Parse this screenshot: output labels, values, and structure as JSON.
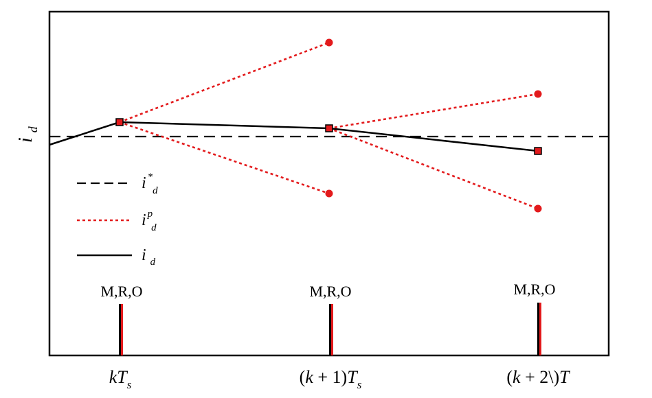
{
  "y_axis_label": {
    "main": "i",
    "sub": "d"
  },
  "legend": [
    {
      "style": "dashed",
      "main": "i",
      "sup": "*",
      "sub": "d",
      "color": "#000000"
    },
    {
      "style": "dotted",
      "main": "i",
      "sup": "p",
      "sub": "d",
      "color": "#e31a1c"
    },
    {
      "style": "solid",
      "main": "i",
      "sup": "",
      "sub": "d",
      "color": "#000000"
    }
  ],
  "markers": [
    {
      "label": "M,R,O"
    },
    {
      "label": "M,R,O"
    },
    {
      "label": "M,R,O"
    }
  ],
  "x_ticks": [
    {
      "parts": [
        {
          "t": "kT",
          "i": true
        },
        {
          "t": "s",
          "i": true,
          "sub": true
        }
      ]
    },
    {
      "parts": [
        {
          "t": "(",
          "i": false
        },
        {
          "t": "k",
          "i": true
        },
        {
          "t": " + 1)",
          "i": false
        },
        {
          "t": "T",
          "i": true
        },
        {
          "t": "s",
          "i": true,
          "sub": true
        }
      ]
    },
    {
      "parts": [
        {
          "t": "(",
          "i": false
        },
        {
          "t": "k",
          "i": true
        },
        {
          "t": " + 2\\)",
          "i": false
        },
        {
          "t": "T",
          "i": true
        }
      ]
    }
  ],
  "colors": {
    "prediction": "#e31a1c",
    "actual": "#000000",
    "reference": "#000000"
  }
}
